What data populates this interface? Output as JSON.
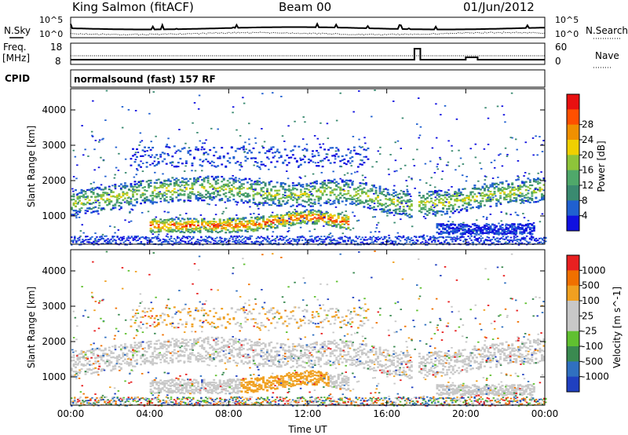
{
  "header": {
    "station": "King Salmon (fitACF)",
    "beam": "Beam 00",
    "date": "01/Jun/2012"
  },
  "top_labels": {
    "n_sky": "N.Sky",
    "n_search": "N.Search",
    "freq": "Freq.",
    "freq_unit": "[MHz]",
    "nave": "Nave",
    "cpid": "CPID",
    "cpid_value": "normalsound (fast) 157 RF"
  },
  "noise_ticks_left": [
    "10^5",
    "10^0"
  ],
  "noise_ticks_right": [
    "10^5",
    "10^0"
  ],
  "freq_ticks": [
    "18",
    "8"
  ],
  "nave_ticks": [
    "60",
    "0"
  ],
  "colors": {
    "background": "#ffffff",
    "axis": "#000000",
    "power_scale": [
      "#1010e0",
      "#2060d0",
      "#3a8a70",
      "#4fa86a",
      "#8ec43a",
      "#f0d000",
      "#f09000",
      "#ff5000",
      "#e81010"
    ],
    "velocity_scale": [
      "#2040c0",
      "#3070c0",
      "#3a8a50",
      "#60c030",
      "#c8c8c8",
      "#c8c8c8",
      "#f0a020",
      "#f07000",
      "#e82020"
    ]
  },
  "chart_data": [
    {
      "type": "heatmap",
      "title": "",
      "xlabel": "",
      "ylabel": "Slant Range [km]",
      "x_ticks": [
        "00:00",
        "04:00",
        "08:00",
        "12:00",
        "16:00",
        "20:00",
        "00:00"
      ],
      "y_ticks": [
        "1000",
        "2000",
        "3000",
        "4000"
      ],
      "xlim": [
        0,
        24
      ],
      "ylim": [
        200,
        4600
      ],
      "colorbar_label": "Power [dB]",
      "colorbar_ticks": [
        "4",
        "8",
        "12",
        "16",
        "20",
        "24",
        "28"
      ],
      "echo_bands": [
        {
          "start_h": 0.0,
          "end_h": 24.0,
          "center_km": 1550,
          "width_km": 700
        },
        {
          "start_h": 4.0,
          "end_h": 14.0,
          "center_km": 750,
          "width_km": 400
        },
        {
          "start_h": 18.5,
          "end_h": 23.5,
          "center_km": 650,
          "width_km": 300
        },
        {
          "start_h": 3.0,
          "end_h": 15.0,
          "center_km": 2700,
          "width_km": 600
        }
      ]
    },
    {
      "type": "heatmap",
      "title": "",
      "xlabel": "Time UT",
      "ylabel": "Slant Range [km]",
      "x_ticks": [
        "00:00",
        "04:00",
        "08:00",
        "12:00",
        "16:00",
        "20:00",
        "00:00"
      ],
      "y_ticks": [
        "1000",
        "2000",
        "3000",
        "4000"
      ],
      "xlim": [
        0,
        24
      ],
      "ylim": [
        200,
        4600
      ],
      "colorbar_label": "Velocity [m s^-1]",
      "colorbar_ticks": [
        "1000",
        "500",
        "100",
        "25",
        "-25",
        "-100",
        "-500",
        "-1000"
      ]
    }
  ]
}
